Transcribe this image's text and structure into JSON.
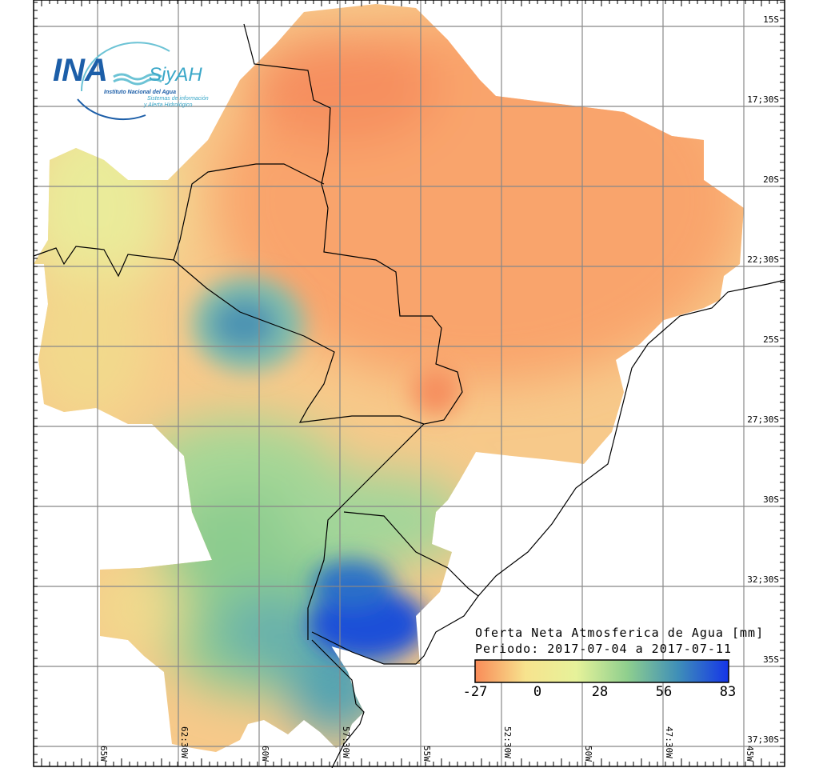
{
  "logo": {
    "main": "INA",
    "product": "SiyAH",
    "org": "Instituto Nacional del Agua",
    "sub1": "Sistemas de información",
    "sub2": "y Alerta Hidrológico"
  },
  "legend": {
    "title": "Oferta Neta Atmosferica de Agua [mm]",
    "period": "Periodo: 2017-07-04 a 2017-07-11",
    "ticks": [
      "-27",
      "0",
      "28",
      "56",
      "83"
    ],
    "colors": [
      "#f98b58",
      "#f7e38e",
      "#e6f29a",
      "#8fcf8e",
      "#3f8fb8",
      "#1535e8"
    ]
  },
  "lat_labels": [
    "15S",
    "17;30S",
    "20S",
    "22;30S",
    "25S",
    "27;30S",
    "30S",
    "32;30S",
    "35S",
    "37;30S"
  ],
  "lon_labels": [
    "65W",
    "62:30W",
    "60W",
    "57:30W",
    "55W",
    "52:30W",
    "50W",
    "47:30W",
    "45W"
  ]
}
